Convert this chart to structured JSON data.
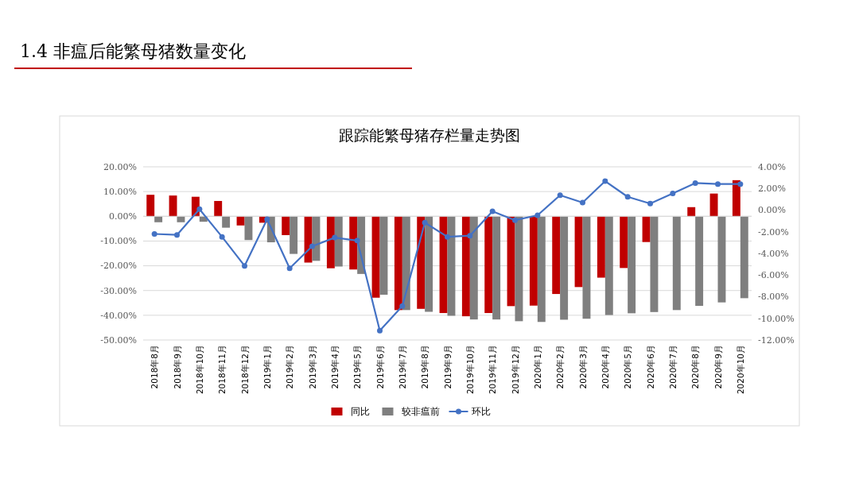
{
  "chart_data": {
    "type": "bar",
    "title": "1.4 非瘟后能繁母猪数量变化",
    "subtitle": "跟踪能繁母猪存栏量走势图",
    "categories": [
      "2018年8月",
      "2018年9月",
      "2018年10月",
      "2018年11月",
      "2018年12月",
      "2019年1月",
      "2019年2月",
      "2019年3月",
      "2019年4月",
      "2019年5月",
      "2019年6月",
      "2019年7月",
      "2019年8月",
      "2019年9月",
      "2019年10月",
      "2019年11月",
      "2019年12月",
      "2020年1月",
      "2020年2月",
      "2020年3月",
      "2020年4月",
      "2020年5月",
      "2020年6月",
      "2020年7月",
      "2020年8月",
      "2020年9月",
      "2020年10月"
    ],
    "series": [
      {
        "name": "同比",
        "color": "#c00000",
        "values": [
          8.7,
          8.4,
          7.9,
          6.2,
          -3.7,
          -2.6,
          -7.6,
          -18.7,
          -21.0,
          -21.5,
          -32.9,
          -37.9,
          -37.4,
          -39.1,
          -40.4,
          -39.1,
          -36.3,
          -36.1,
          -31.4,
          -28.6,
          -24.8,
          -20.9,
          -10.4,
          0,
          3.7,
          9.2,
          14.6
        ]
      },
      {
        "name": "较非瘟前",
        "color": "#7f7f7f",
        "values": [
          -2.4,
          -2.4,
          -2.2,
          -4.6,
          -9.6,
          -10.5,
          -15.2,
          -18.0,
          -20.3,
          -23.3,
          -31.7,
          -37.9,
          -38.6,
          -40.2,
          -41.7,
          -41.7,
          -42.4,
          -42.7,
          -41.8,
          -41.4,
          -39.9,
          -39.2,
          -38.7,
          -37.9,
          -36.2,
          -34.8,
          -33.1
        ]
      },
      {
        "name": "环比",
        "type": "line",
        "axis": "y2",
        "color": "#4472c4",
        "values": [
          -2.2,
          -2.29,
          0.09,
          -2.47,
          -5.15,
          -0.84,
          -5.38,
          -3.34,
          -2.54,
          -2.81,
          -11.14,
          -8.87,
          -1.16,
          -2.47,
          -2.36,
          -0.11,
          -0.93,
          -0.48,
          1.38,
          0.7,
          2.68,
          1.23,
          0.61,
          1.54,
          2.5,
          2.41,
          2.41
        ]
      }
    ],
    "ylim": [
      -50,
      20
    ],
    "yticks": [
      {
        "value": 20,
        "label": "20.00%"
      },
      {
        "value": 10,
        "label": "10.00%"
      },
      {
        "value": 0,
        "label": "0.00%"
      },
      {
        "value": -10,
        "label": "-10.00%"
      },
      {
        "value": -20,
        "label": "-20.00%"
      },
      {
        "value": -30,
        "label": "-30.00%"
      },
      {
        "value": -40,
        "label": "-40.00%"
      },
      {
        "value": -50,
        "label": "-50.00%"
      }
    ],
    "y2lim": [
      -12,
      4
    ],
    "y2ticks": [
      {
        "value": 4,
        "label": "4.00%"
      },
      {
        "value": 2,
        "label": "2.00%"
      },
      {
        "value": 0,
        "label": "0.00%"
      },
      {
        "value": -2,
        "label": "-2.00%"
      },
      {
        "value": -4,
        "label": "-4.00%"
      },
      {
        "value": -6,
        "label": "-6.00%"
      },
      {
        "value": -8,
        "label": "-8.00%"
      },
      {
        "value": -10,
        "label": "-10.00%"
      },
      {
        "value": -12,
        "label": "-12.00%"
      }
    ],
    "grid": "y",
    "legend": "bottom",
    "marker": "circle",
    "line_style": "solid"
  }
}
